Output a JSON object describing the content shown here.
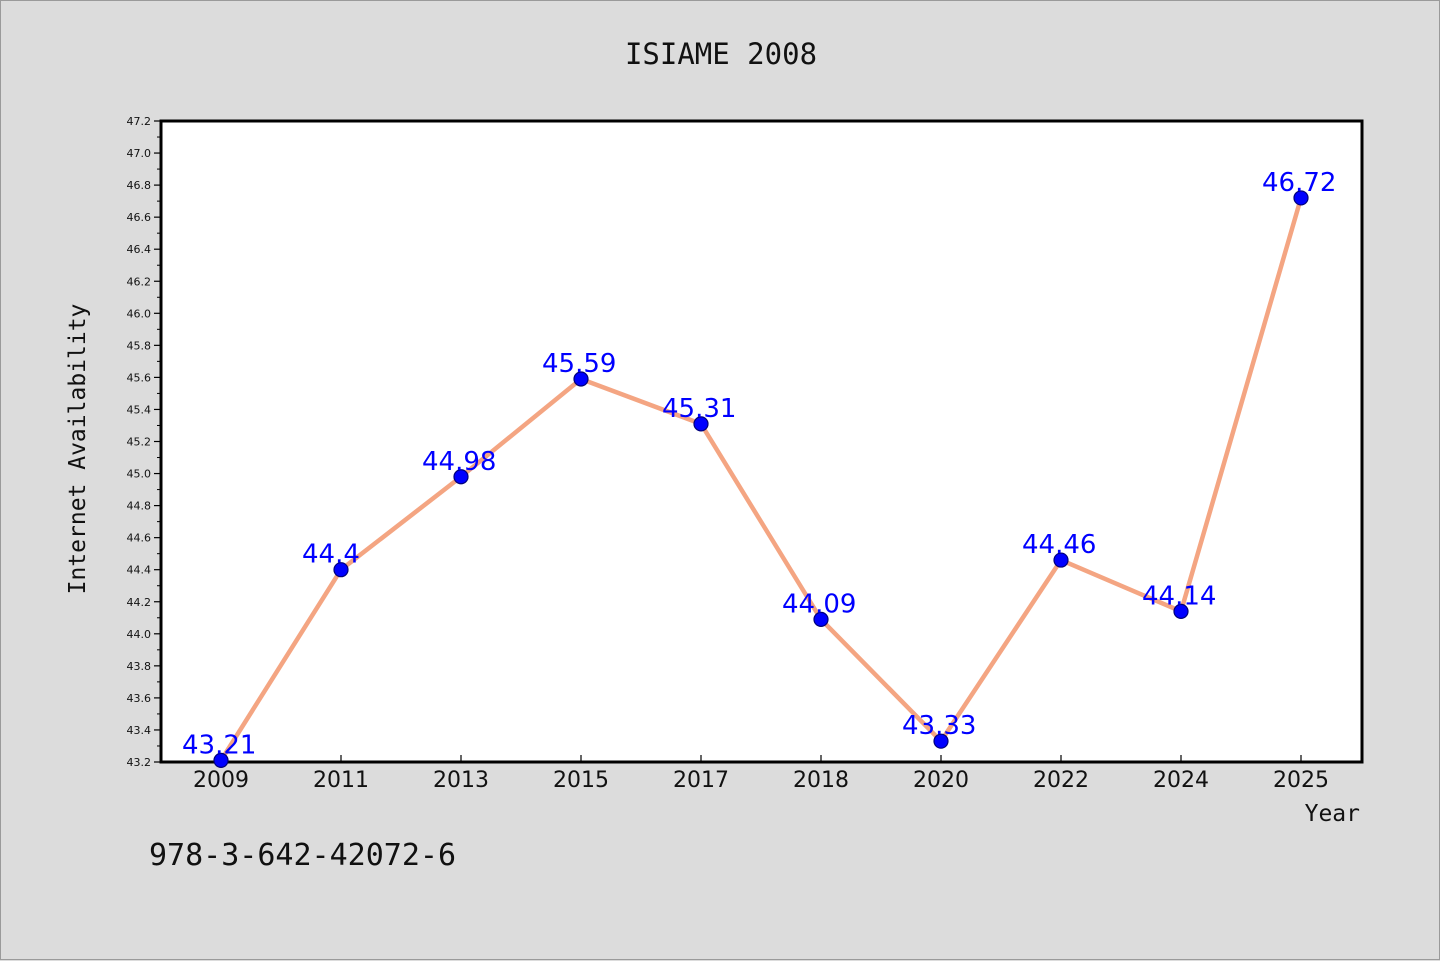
{
  "chart_data": {
    "type": "line",
    "title": "ISIAME 2008",
    "xlabel": "Year",
    "ylabel": "Internet Availability",
    "categories": [
      "2009",
      "2011",
      "2013",
      "2015",
      "2017",
      "2018",
      "2020",
      "2022",
      "2024",
      "2025"
    ],
    "values": [
      43.21,
      44.4,
      44.98,
      45.59,
      45.31,
      44.09,
      43.33,
      44.46,
      44.14,
      46.72
    ],
    "data_labels": [
      "43.21",
      "44.4",
      "44.98",
      "45.59",
      "45.31",
      "44.09",
      "43.33",
      "44.46",
      "44.14",
      "46.72"
    ],
    "ylim": [
      43.2,
      47.2
    ],
    "yticks": [
      "43.2",
      "43.4",
      "43.6",
      "43.8",
      "44.0",
      "44.2",
      "44.4",
      "44.6",
      "44.8",
      "45.0",
      "45.2",
      "45.4",
      "45.6",
      "45.8",
      "46.0",
      "46.2",
      "46.4",
      "46.6",
      "46.8",
      "47.0",
      "47.2"
    ],
    "grid": false,
    "line_color": "#f4a582",
    "marker_color": "#0000ff",
    "label_color": "#0000ff"
  },
  "footer": {
    "isbn": "978-3-642-42072-6"
  }
}
